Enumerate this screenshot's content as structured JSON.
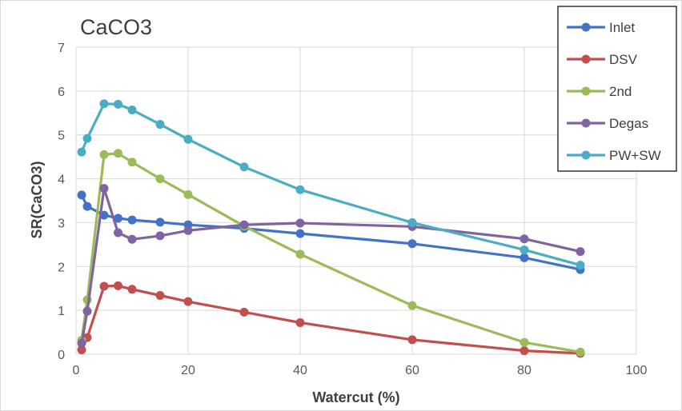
{
  "chart_data": {
    "type": "line",
    "title": "CaCO3",
    "xlabel": "Watercut (%)",
    "ylabel": "SR(CaCO3)",
    "xlim": [
      0,
      100
    ],
    "ylim": [
      0,
      7
    ],
    "xticks": [
      0,
      20,
      40,
      60,
      80,
      100
    ],
    "yticks": [
      0,
      1,
      2,
      3,
      4,
      5,
      6,
      7
    ],
    "grid": true,
    "legend_position": "top-right",
    "x": [
      1,
      2,
      5,
      7.5,
      10,
      15,
      20,
      30,
      40,
      60,
      80,
      90
    ],
    "series": [
      {
        "name": "Inlet",
        "color": "#4472C4",
        "values": [
          3.63,
          3.37,
          3.17,
          3.1,
          3.06,
          3.01,
          2.95,
          2.87,
          2.75,
          2.52,
          2.2,
          1.93
        ]
      },
      {
        "name": "DSV",
        "color": "#C0504D",
        "values": [
          0.1,
          0.38,
          1.55,
          1.56,
          1.48,
          1.34,
          1.2,
          0.96,
          0.72,
          0.33,
          0.08,
          0.02
        ]
      },
      {
        "name": "2nd",
        "color": "#9BBB59",
        "values": [
          0.32,
          1.24,
          4.55,
          4.58,
          4.38,
          4.0,
          3.64,
          2.92,
          2.28,
          1.11,
          0.27,
          0.05
        ]
      },
      {
        "name": "Degas",
        "color": "#8064A2",
        "values": [
          0.25,
          0.98,
          3.78,
          2.77,
          2.62,
          2.7,
          2.82,
          2.95,
          2.99,
          2.91,
          2.63,
          2.34
        ]
      },
      {
        "name": "PW+SW",
        "color": "#4BACC6",
        "values": [
          4.61,
          4.92,
          5.71,
          5.7,
          5.57,
          5.24,
          4.9,
          4.27,
          3.75,
          3.0,
          2.38,
          2.03
        ]
      }
    ]
  }
}
